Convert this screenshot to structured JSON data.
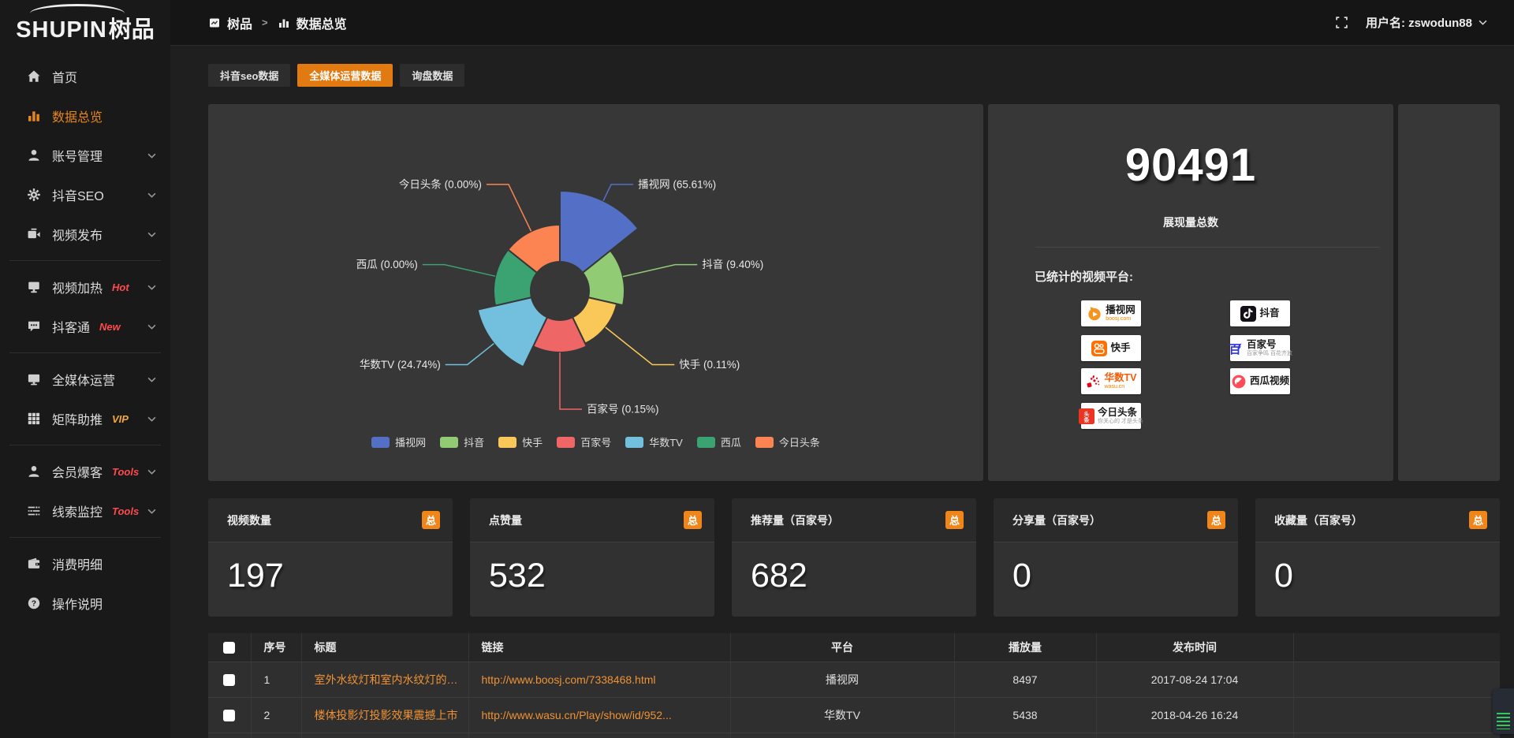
{
  "sidebar": {
    "logo_en": "SHUPIN",
    "logo_cn": "树品",
    "items": [
      {
        "id": "home",
        "label": "首页",
        "icon": "home-icon"
      },
      {
        "id": "data-overview",
        "label": "数据总览",
        "icon": "bar-chart-icon",
        "active": true
      },
      {
        "id": "account-manage",
        "label": "账号管理",
        "icon": "user-icon",
        "chevron": true
      },
      {
        "id": "douyin-seo",
        "label": "抖音SEO",
        "icon": "gear-icon",
        "chevron": true
      },
      {
        "id": "video-publish",
        "label": "视频发布",
        "icon": "video-icon",
        "chevron": true
      },
      {
        "divider": true
      },
      {
        "id": "video-heat",
        "label": "视频加热",
        "icon": "screen-icon",
        "chevron": true,
        "badge": "Hot",
        "badge_color": "#ff4a4d"
      },
      {
        "id": "douketong",
        "label": "抖客通",
        "icon": "chat-icon",
        "chevron": true,
        "badge": "New",
        "badge_color": "#ff4a4d"
      },
      {
        "divider": true
      },
      {
        "id": "all-media-ops",
        "label": "全媒体运营",
        "icon": "monitor-icon",
        "chevron": true
      },
      {
        "id": "matrix-boost",
        "label": "矩阵助推",
        "icon": "grid-icon",
        "chevron": true,
        "badge": "VIP",
        "badge_color": "#f5a73b"
      },
      {
        "divider": true
      },
      {
        "id": "member-baoke",
        "label": "会员爆客",
        "icon": "member-icon",
        "chevron": true,
        "badge": "Tools",
        "badge_color": "#ff4a4d"
      },
      {
        "id": "clue-monitor",
        "label": "线索监控",
        "icon": "sliders-icon",
        "chevron": true,
        "badge": "Tools",
        "badge_color": "#ff4a4d"
      },
      {
        "divider": true
      },
      {
        "id": "expense-detail",
        "label": "消费明细",
        "icon": "wallet-icon"
      },
      {
        "id": "help-guide",
        "label": "操作说明",
        "icon": "help-icon"
      }
    ]
  },
  "topbar": {
    "breadcrumb_app": "树品",
    "breadcrumb_sep": ">",
    "breadcrumb_page": "数据总览",
    "username": "用户名: zswodun88"
  },
  "tabs": [
    {
      "label": "抖音seo数据"
    },
    {
      "label": "全媒体运营数据",
      "active": true
    },
    {
      "label": "询盘数据"
    }
  ],
  "chart_data": {
    "type": "pie",
    "subtype": "nightingale-rose",
    "title": "",
    "categories": [
      "播视网",
      "抖音",
      "快手",
      "百家号",
      "华数TV",
      "西瓜",
      "今日头条"
    ],
    "values_percent": [
      65.61,
      9.4,
      0.11,
      0.15,
      24.74,
      0.0,
      0.0
    ],
    "labels": [
      "播视网 (65.61%)",
      "抖音 (9.40%)",
      "快手 (0.11%)",
      "百家号 (0.15%)",
      "华数TV (24.74%)",
      "西瓜 (0.00%)",
      "今日头条 (0.00%)"
    ],
    "colors": [
      "#5470c6",
      "#91cc75",
      "#fac858",
      "#ee6666",
      "#73c0de",
      "#3ba272",
      "#fc8452"
    ],
    "legend_position": "bottom",
    "grid": false,
    "display_radii": [
      127,
      82,
      74,
      78,
      107,
      84,
      84
    ],
    "inner_radius": 37,
    "label_radius": 150,
    "center": [
      446,
      237
    ]
  },
  "summary": {
    "total": "90491",
    "total_label": "展现量总数",
    "platforms_label": "已统计的视频平台:",
    "platform_columns": [
      [
        {
          "name": "播视网",
          "sub": "boosj.com",
          "sub_color": "orange",
          "icon": "boosj-logo"
        },
        {
          "name": "快手",
          "icon": "kuaishou-logo"
        },
        {
          "name": "华数TV",
          "sub": "wasu.cn",
          "sub_color": "orange",
          "icon": "wasu-logo",
          "name_color": "#f25c05"
        },
        {
          "name": "今日头条",
          "sub": "你关心的 才是头条",
          "sub_color": "gray",
          "icon": "toutiao-logo"
        }
      ],
      [
        {
          "name": "抖音",
          "icon": "douyin-logo"
        },
        {
          "name": "百家号",
          "sub": "百家争鸣 百花齐放",
          "sub_color": "gray",
          "icon": "baijiahao-logo"
        },
        {
          "name": "西瓜视频",
          "icon": "xigua-logo"
        }
      ]
    ]
  },
  "stat_cards": [
    {
      "title": "视频数量",
      "badge": "总",
      "value": "197"
    },
    {
      "title": "点赞量",
      "badge": "总",
      "value": "532"
    },
    {
      "title": "推荐量（百家号）",
      "badge": "总",
      "value": "682"
    },
    {
      "title": "分享量（百家号）",
      "badge": "总",
      "value": "0"
    },
    {
      "title": "收藏量（百家号）",
      "badge": "总",
      "value": "0"
    }
  ],
  "table": {
    "headers": [
      "序号",
      "标题",
      "链接",
      "平台",
      "播放量",
      "发布时间"
    ],
    "rows": [
      {
        "index": "1",
        "title": "室外水纹灯和室内水纹灯的区别和简介",
        "link": "http://www.boosj.com/7338468.html",
        "platform": "播视网",
        "plays": "8497",
        "time": "2017-08-24 17:04"
      },
      {
        "index": "2",
        "title": "楼体投影灯投影效果震撼上市",
        "link": "http://www.wasu.cn/Play/show/id/952...",
        "platform": "华数TV",
        "plays": "5438",
        "time": "2018-04-26 16:24"
      }
    ]
  },
  "accent_colors": {
    "orange": "#e17a10",
    "badge_orange": "#f08519",
    "link_orange": "#ef9235"
  }
}
